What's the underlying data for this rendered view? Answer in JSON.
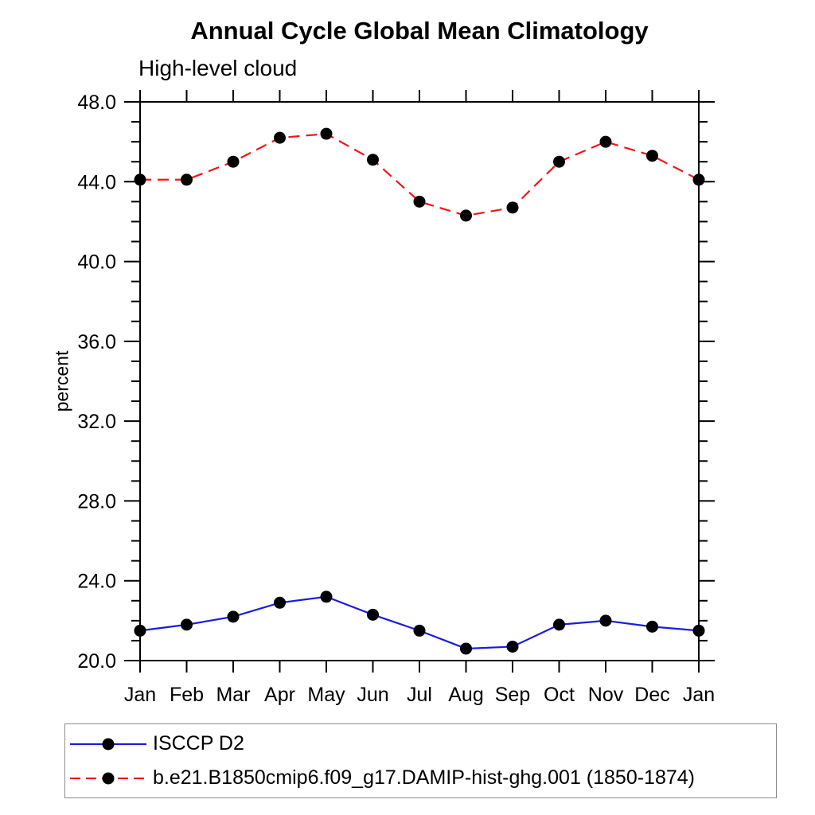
{
  "chart": {
    "title": "Annual Cycle Global Mean Climatology",
    "subtitle": "High-level cloud",
    "ylabel": "percent"
  },
  "chart_data": {
    "type": "line",
    "title": "Annual Cycle Global Mean Climatology",
    "subtitle": "High-level cloud",
    "xlabel": "",
    "ylabel": "percent",
    "categories": [
      "Jan",
      "Feb",
      "Mar",
      "Apr",
      "May",
      "Jun",
      "Jul",
      "Aug",
      "Sep",
      "Oct",
      "Nov",
      "Dec",
      "Jan"
    ],
    "series": [
      {
        "name": "ISCCP D2",
        "color": "#1c1ce0",
        "style": "solid",
        "marker": "circle",
        "marker_color": "#000000",
        "values": [
          21.5,
          21.8,
          22.2,
          22.9,
          23.2,
          22.3,
          21.5,
          20.6,
          20.7,
          21.8,
          22.0,
          21.7,
          21.5
        ]
      },
      {
        "name": "b.e21.B1850cmip6.f09_g17.DAMIP-hist-ghg.001 (1850-1874)",
        "color": "#f21616",
        "style": "dashed",
        "marker": "circle",
        "marker_color": "#000000",
        "values": [
          44.1,
          44.1,
          45.0,
          46.2,
          46.4,
          45.1,
          43.0,
          42.3,
          42.7,
          45.0,
          46.0,
          45.3,
          44.1
        ]
      }
    ],
    "ylim": [
      20.0,
      48.0
    ],
    "y_major_step": 4,
    "y_minor_step": 1,
    "y_tick_label_format": "one-decimal",
    "grid": false,
    "frame": "box-with-outward-ticks",
    "axis_color": "#000000",
    "legend_position": "bottom",
    "legend_border_color": "#8c8c8c"
  }
}
